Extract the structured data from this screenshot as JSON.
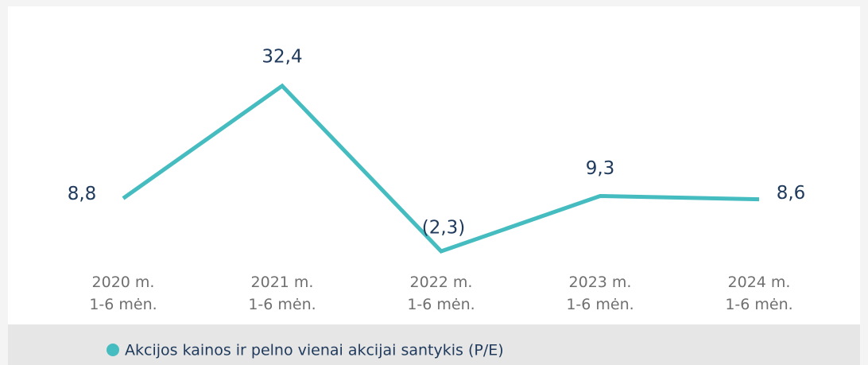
{
  "chart_data": {
    "type": "line",
    "categories": [
      "2020 m.\n1-6 mėn.",
      "2021 m.\n1-6 mėn.",
      "2022 m.\n1-6 mėn.",
      "2023 m.\n1-6 mėn.",
      "2024 m.\n1-6 mėn."
    ],
    "series": [
      {
        "name": "Akcijos kainos ir pelno vienai akcijai santykis (P/E)",
        "color": "#45bcc0",
        "values": [
          8.8,
          32.4,
          -2.3,
          9.3,
          8.6
        ],
        "value_labels": [
          "8,8",
          "32,4",
          "(2,3)",
          "9,3",
          "8,6"
        ]
      }
    ],
    "legend": "bottom"
  }
}
